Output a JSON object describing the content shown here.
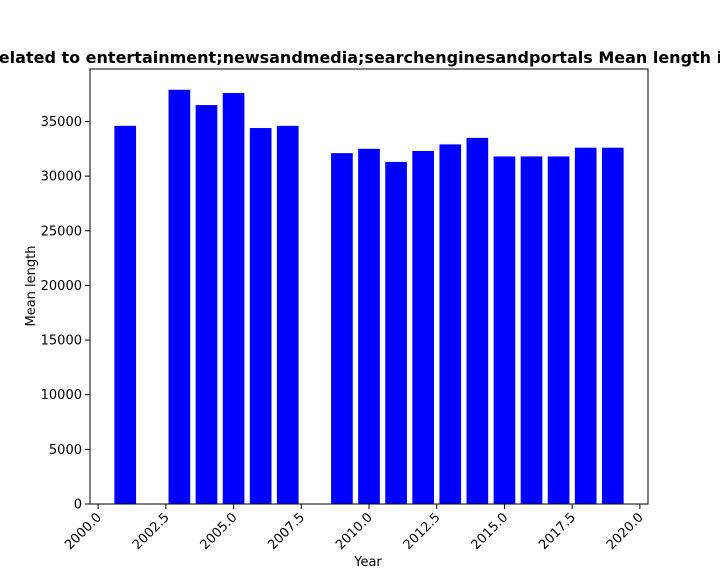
{
  "chart_data": {
    "type": "bar",
    "title": "Related to entertainment;newsandmedia;searchenginesandportals Mean length in",
    "xlabel": "Year",
    "ylabel": "Mean length",
    "x": [
      2001,
      2003,
      2004,
      2005,
      2006,
      2007,
      2009,
      2010,
      2011,
      2012,
      2013,
      2014,
      2015,
      2016,
      2017,
      2018,
      2019
    ],
    "values": [
      34600,
      37900,
      36500,
      37600,
      34400,
      34600,
      32100,
      32500,
      31300,
      32300,
      32900,
      33500,
      31800,
      31800,
      31800,
      32600,
      32600
    ],
    "xlim": [
      1999.7,
      2020.3
    ],
    "ylim": [
      0,
      39800
    ],
    "xticks": [
      2000.0,
      2002.5,
      2005.0,
      2007.5,
      2010.0,
      2012.5,
      2015.0,
      2017.5,
      2020.0
    ],
    "xtick_labels": [
      "2000.0",
      "2002.5",
      "2005.0",
      "2007.5",
      "2010.0",
      "2012.5",
      "2015.0",
      "2017.5",
      "2020.0"
    ],
    "yticks": [
      0,
      5000,
      10000,
      15000,
      20000,
      25000,
      30000,
      35000
    ],
    "ytick_labels": [
      "0",
      "5000",
      "10000",
      "15000",
      "20000",
      "25000",
      "30000",
      "35000"
    ],
    "bar_color": "#0000ff",
    "grid": false
  }
}
